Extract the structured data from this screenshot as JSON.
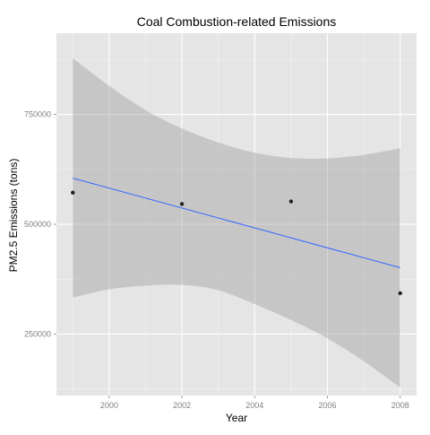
{
  "chart_data": {
    "type": "scatter",
    "title": "Coal Combustion-related Emissions",
    "xlabel": "Year",
    "ylabel": "PM2.5 Emissions (tons)",
    "x": [
      1999,
      2002,
      2005,
      2008
    ],
    "y": [
      572000,
      546000,
      552000,
      343000
    ],
    "xlim": [
      1998.55,
      2008.45
    ],
    "ylim": [
      110000,
      935000
    ],
    "xticks": [
      2000,
      2002,
      2004,
      2006,
      2008
    ],
    "xtick_labels": [
      "2000",
      "2002",
      "2004",
      "2006",
      "2008"
    ],
    "yticks": [
      250000,
      500000,
      750000
    ],
    "ytick_labels": [
      "250000",
      "500000",
      "750000"
    ],
    "fit": {
      "method": "lm",
      "x": [
        1999,
        2008
      ],
      "y": [
        605000,
        401000
      ]
    },
    "confidence_band": {
      "x": [
        1999,
        2000,
        2001,
        2002,
        2003,
        2004,
        2005,
        2006,
        2007,
        2008
      ],
      "upper": [
        878000,
        815000,
        760000,
        718000,
        686000,
        663000,
        651000,
        650000,
        658000,
        673000
      ],
      "lower": [
        333000,
        352000,
        360000,
        362000,
        350000,
        318000,
        282000,
        240000,
        188000,
        128000
      ]
    },
    "grid": true,
    "legend": "none",
    "colors": {
      "panel": "#e5e5e5",
      "grid_major": "#ffffff",
      "grid_minor": "#f2f2f2",
      "point": "#222222",
      "fit_line": "#3366ff",
      "band": "#999999",
      "tick_text": "#7f7f7f",
      "label_text": "#000000"
    }
  }
}
